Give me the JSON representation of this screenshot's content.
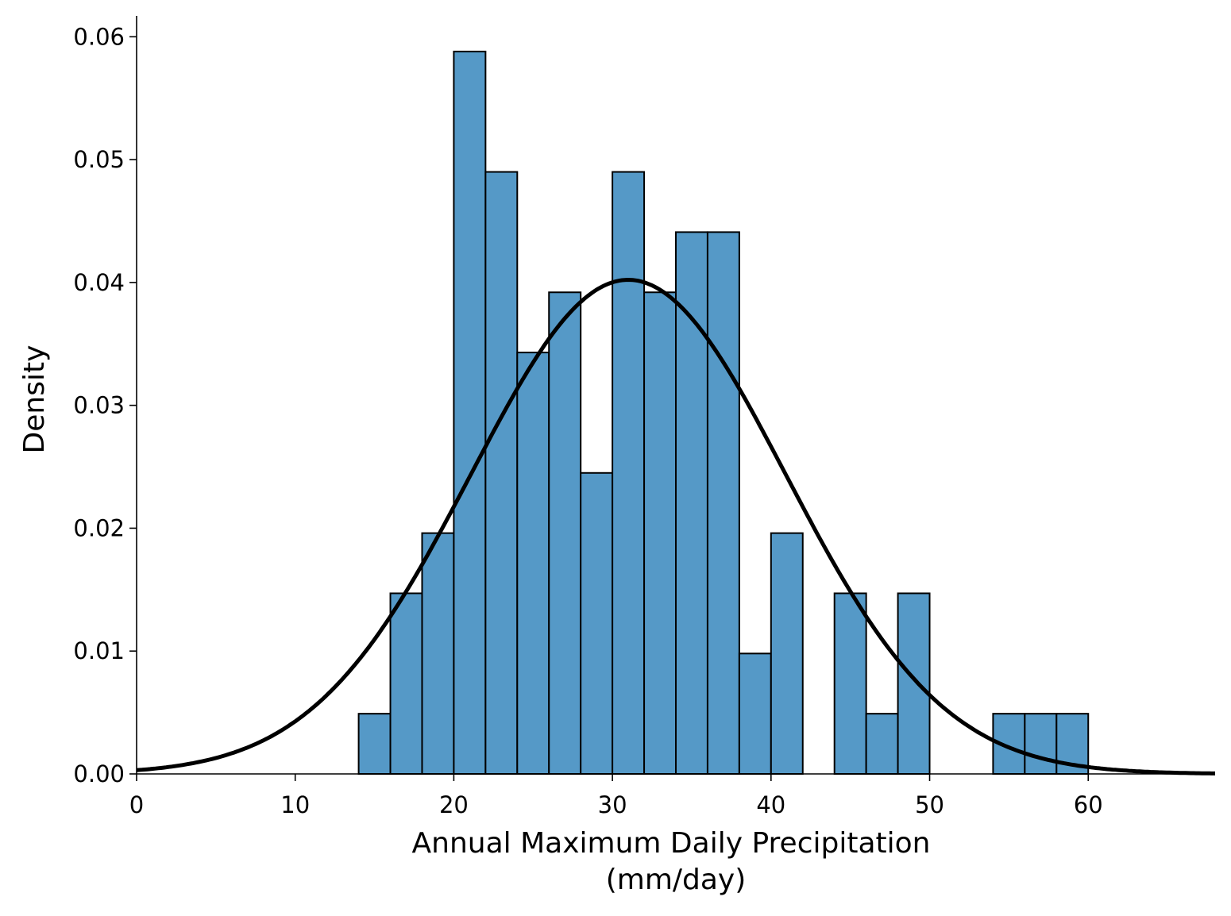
{
  "chart_data": {
    "type": "bar",
    "title": "",
    "xlabel_line1": "Annual Maximum Daily Precipitation",
    "xlabel_line2": "(mm/day)",
    "ylabel": "Density",
    "xlim": [
      0,
      68
    ],
    "ylim": [
      0,
      0.0617
    ],
    "xticks": [
      0,
      10,
      20,
      30,
      40,
      50,
      60
    ],
    "xtick_labels": [
      "0",
      "10",
      "20",
      "30",
      "40",
      "50",
      "60"
    ],
    "yticks": [
      0,
      0.01,
      0.02,
      0.03,
      0.04,
      0.05,
      0.06
    ],
    "ytick_labels": [
      "0.00",
      "0.01",
      "0.02",
      "0.03",
      "0.04",
      "0.05",
      "0.06"
    ],
    "grid": false,
    "bar_color": "#5599c7",
    "bins": {
      "edges_start": 14,
      "width": 2,
      "density": [
        0.0049,
        0.0147,
        0.0196,
        0.0588,
        0.049,
        0.0343,
        0.0392,
        0.0245,
        0.049,
        0.0392,
        0.0441,
        0.0441,
        0.0098,
        0.0196,
        0,
        0.0147,
        0.0049,
        0.0147,
        0,
        0,
        0.0049,
        0.0049,
        0.0049
      ]
    },
    "fitted_curve": {
      "type": "normal_pdf",
      "mean": 31,
      "std": 9.92,
      "color": "#000000"
    }
  }
}
